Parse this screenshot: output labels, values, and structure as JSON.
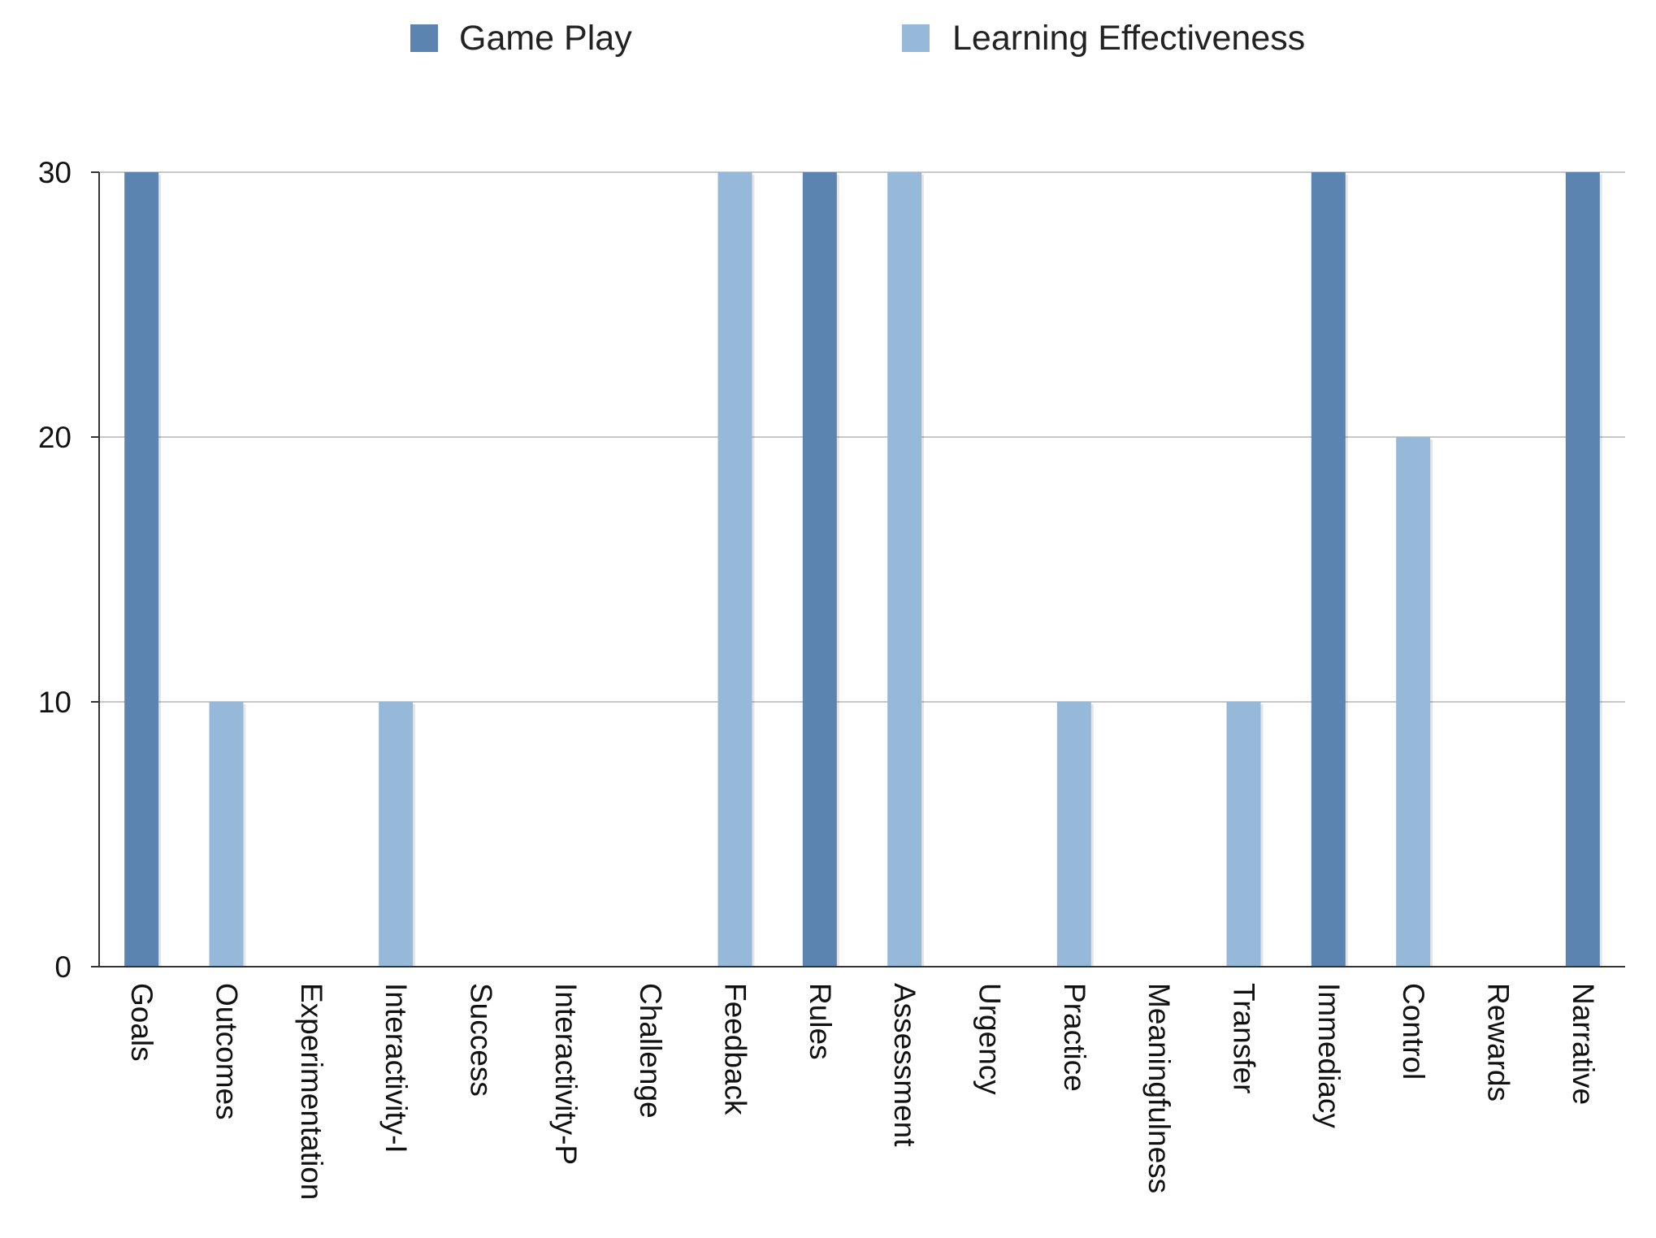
{
  "chart_data": {
    "type": "bar",
    "categories": [
      "Goals",
      "Outcomes",
      "Experimentation",
      "Interactivity-I",
      "Success",
      "Interactivity-P",
      "Challenge",
      "Feedback",
      "Rules",
      "Assessment",
      "Urgency",
      "Practice",
      "Meaningfulness",
      "Transfer",
      "Immediacy",
      "Control",
      "Rewards",
      "Narrative"
    ],
    "series": [
      {
        "name": "Game Play",
        "color": "#5b84b1",
        "values": [
          30,
          0,
          0,
          0,
          0,
          0,
          0,
          0,
          30,
          0,
          0,
          0,
          0,
          0,
          30,
          0,
          0,
          30
        ]
      },
      {
        "name": "Learning Effectiveness",
        "color": "#97b9d9",
        "values": [
          0,
          10,
          0,
          10,
          0,
          0,
          0,
          30,
          0,
          30,
          0,
          10,
          0,
          10,
          0,
          20,
          0,
          0
        ]
      }
    ],
    "yticks": [
      "0",
      "10",
      "20",
      "30"
    ],
    "ylim": [
      0,
      30
    ],
    "grid": true,
    "legend_position": "top"
  }
}
